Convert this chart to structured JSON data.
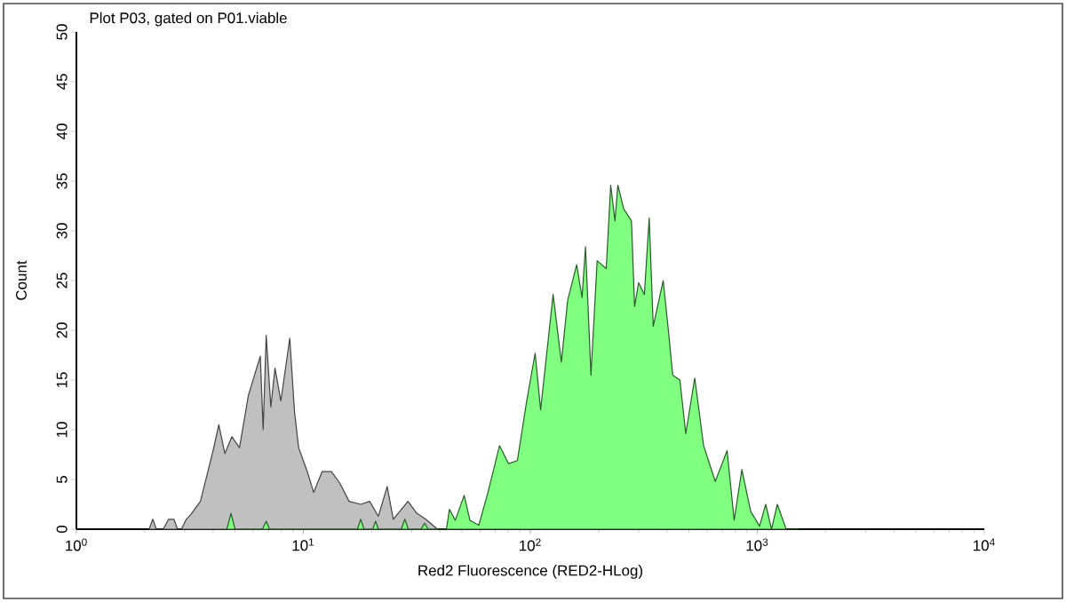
{
  "chart_data": {
    "type": "area",
    "title": "Plot P03, gated on P01.viable",
    "xlabel": "Red2 Fluorescence (RED2-HLog)",
    "ylabel": "Count",
    "log": "x",
    "grid": false,
    "xlim": [
      1,
      10000
    ],
    "xticks": [
      {
        "value": 1,
        "label": "10$^{0}$"
      },
      {
        "value": 10,
        "label": "10$^{1}$"
      },
      {
        "value": 100,
        "label": "10$^{2}$"
      },
      {
        "value": 1000,
        "label": "10$^{3}$"
      },
      {
        "value": 10000,
        "label": "10$^{4}$"
      }
    ],
    "ylim": [
      0,
      50
    ],
    "yticks": [
      0,
      5,
      10,
      15,
      20,
      25,
      30,
      35,
      40,
      45,
      50
    ],
    "series": [
      {
        "color": "#c0c0c0",
        "x": [
          2.09,
          2.17,
          2.25,
          2.41,
          2.55,
          2.69,
          2.79,
          2.9,
          3.05,
          3.2,
          3.52,
          4.0,
          4.24,
          4.51,
          4.84,
          5.23,
          5.73,
          6.46,
          6.65,
          6.86,
          7.19,
          7.5,
          7.96,
          8.71,
          9.14,
          9.53,
          10.4,
          11.1,
          12.1,
          13.3,
          14.5,
          15.9,
          17.9,
          19.6,
          21.4,
          23.4,
          24.9,
          28.9,
          31.6,
          34.6,
          39.0
        ],
        "values": [
          0,
          1,
          0,
          0,
          1,
          1,
          0,
          0,
          1,
          1.5,
          2.8,
          7.9,
          10.5,
          7.6,
          9.3,
          8.2,
          13.5,
          17.4,
          10,
          19.5,
          12.3,
          16.2,
          12.9,
          19.2,
          11.8,
          8.2,
          5.8,
          3.7,
          5.8,
          5.8,
          4.6,
          2.8,
          2.5,
          2.8,
          1.3,
          4.3,
          1,
          2.8,
          1.6,
          1,
          0
        ]
      },
      {
        "color": "#80ff80",
        "x": [
          4.6,
          4.8,
          5.0,
          6.6,
          6.86,
          7.1,
          17.3,
          17.9,
          18.5,
          20.2,
          20.8,
          21.4,
          27,
          28,
          29,
          33,
          34.2,
          35.5,
          42.7,
          44,
          46.7,
          51.1,
          54.2,
          59.3,
          64.9,
          73.2,
          80.1,
          87.7,
          95.9,
          105,
          111,
          126,
          137,
          146,
          160,
          169,
          175,
          185,
          197,
          216,
          226,
          236,
          243,
          258,
          279,
          288,
          300,
          318,
          334,
          348,
          385,
          404,
          424,
          456,
          484,
          530,
          580,
          653,
          736,
          791,
          855,
          935,
          1023,
          1089,
          1155,
          1225,
          1340,
          1513
        ],
        "values": [
          0,
          1.6,
          0,
          0,
          0.8,
          0,
          0,
          1,
          0,
          0,
          0.8,
          0,
          0,
          1,
          0,
          0,
          0.6,
          0,
          0,
          2,
          0.9,
          3.4,
          0.9,
          0.4,
          3.6,
          8.4,
          6.6,
          6.9,
          12.6,
          17.7,
          12,
          23.6,
          16.8,
          23,
          26.6,
          23.3,
          28.4,
          15.5,
          27,
          26.2,
          34.6,
          31,
          34.6,
          32.2,
          31,
          22.4,
          24.8,
          23.6,
          31.3,
          20.4,
          25,
          20.4,
          15.5,
          15,
          9.6,
          15.2,
          8.4,
          4.8,
          7.9,
          0.9,
          6,
          1.8,
          0.3,
          2.5,
          0,
          2.5,
          0,
          0
        ]
      }
    ]
  }
}
